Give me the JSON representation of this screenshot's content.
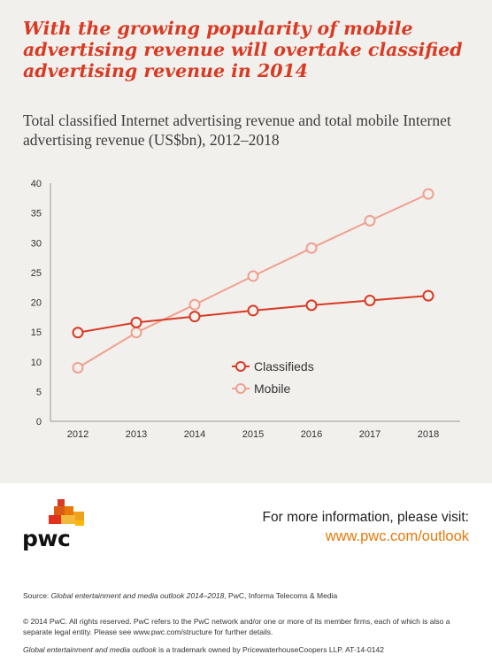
{
  "headline": "With the growing popularity of mobile advertising revenue will overtake classified advertising revenue in 2014",
  "subtitle": "Total classified Internet advertising revenue and total mobile Internet advertising revenue (US$bn), 2012–2018",
  "chart_data": {
    "type": "line",
    "x": [
      "2012",
      "2013",
      "2014",
      "2015",
      "2016",
      "2017",
      "2018"
    ],
    "series": [
      {
        "name": "Classifieds",
        "values": [
          14.9,
          16.6,
          17.6,
          18.6,
          19.5,
          20.3,
          21.1
        ],
        "color": "#d93a24"
      },
      {
        "name": "Mobile",
        "values": [
          9.0,
          14.9,
          19.6,
          24.4,
          29.1,
          33.7,
          38.2
        ],
        "color": "#f0a090"
      }
    ],
    "yticks": [
      0,
      5,
      10,
      15,
      20,
      25,
      30,
      35,
      40
    ],
    "ylim": [
      0,
      40
    ],
    "grid": false,
    "legend": "center-right",
    "markers": "open-circle"
  },
  "footer": {
    "logo_text": "pwc",
    "info_label": "For more information, please visit:",
    "info_link": "www.pwc.com/outlook",
    "source_prefix": "Source: ",
    "source_title": "Global entertainment and media outlook 2014–2018",
    "source_rest": ", PwC, Informa Telecoms & Media",
    "legal": "© 2014 PwC. All rights reserved. PwC refers to the PwC network and/or one or more of its member firms, each of which is also a separate legal entity. Please see www.pwc.com/structure for further details.",
    "trademark_title": "Global entertainment and media outlook",
    "trademark_rest": " is a trademark owned by PricewaterhouseCoopers LLP. AT-14-0142"
  },
  "colors": {
    "accent": "#d93a24",
    "link": "#e6790a",
    "background": "#f1f0ec"
  }
}
